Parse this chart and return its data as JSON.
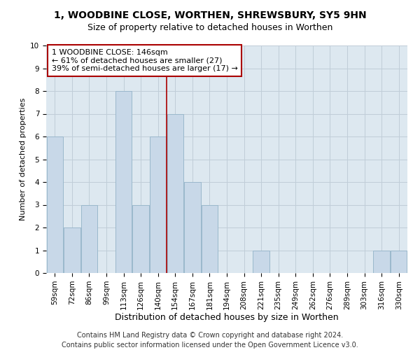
{
  "title": "1, WOODBINE CLOSE, WORTHEN, SHREWSBURY, SY5 9HN",
  "subtitle": "Size of property relative to detached houses in Worthen",
  "xlabel": "Distribution of detached houses by size in Worthen",
  "ylabel": "Number of detached properties",
  "categories": [
    "59sqm",
    "72sqm",
    "86sqm",
    "99sqm",
    "113sqm",
    "126sqm",
    "140sqm",
    "154sqm",
    "167sqm",
    "181sqm",
    "194sqm",
    "208sqm",
    "221sqm",
    "235sqm",
    "249sqm",
    "262sqm",
    "276sqm",
    "289sqm",
    "303sqm",
    "316sqm",
    "330sqm"
  ],
  "values": [
    6,
    2,
    3,
    0,
    8,
    3,
    6,
    7,
    4,
    3,
    0,
    0,
    1,
    0,
    0,
    0,
    0,
    0,
    0,
    1,
    1
  ],
  "bar_color": "#c8d8e8",
  "bar_edgecolor": "#9ab8cc",
  "vline_x": 6.5,
  "vline_color": "#aa0000",
  "annotation_text": "1 WOODBINE CLOSE: 146sqm\n← 61% of detached houses are smaller (27)\n39% of semi-detached houses are larger (17) →",
  "annotation_box_color": "#ffffff",
  "annotation_box_edgecolor": "#aa0000",
  "ylim": [
    0,
    10
  ],
  "yticks": [
    0,
    1,
    2,
    3,
    4,
    5,
    6,
    7,
    8,
    9,
    10
  ],
  "grid_color": "#c0cdd8",
  "bg_color": "#dde8f0",
  "footer_line1": "Contains HM Land Registry data © Crown copyright and database right 2024.",
  "footer_line2": "Contains public sector information licensed under the Open Government Licence v3.0.",
  "title_fontsize": 10,
  "subtitle_fontsize": 9,
  "xlabel_fontsize": 9,
  "ylabel_fontsize": 8,
  "tick_fontsize": 7.5,
  "annotation_fontsize": 8,
  "footer_fontsize": 7
}
